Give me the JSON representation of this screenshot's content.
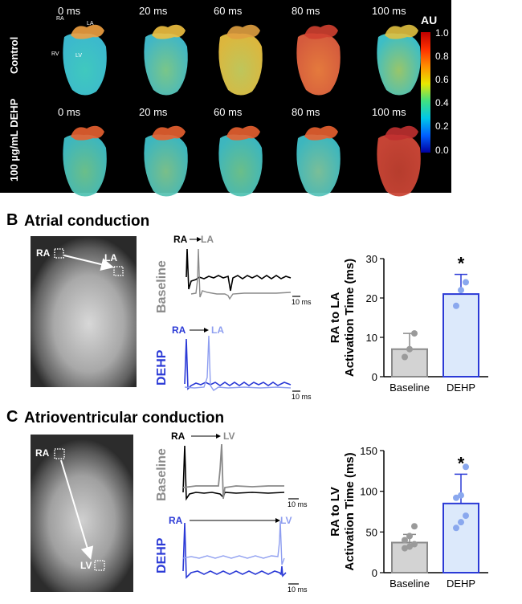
{
  "panelA": {
    "letter": "A",
    "row1_label": "Control",
    "row2_label": "100 µg/mL DEHP",
    "times_row1": [
      "0 ms",
      "20 ms",
      "60 ms",
      "80 ms",
      "100 ms"
    ],
    "times_row2": [
      "0 ms",
      "20 ms",
      "60 ms",
      "80 ms",
      "100 ms"
    ],
    "heart_labels": {
      "ra": "RA",
      "la": "LA",
      "rv": "RV",
      "lv": "LV"
    },
    "colorbar": {
      "unit": "AU",
      "ticks": [
        "1.0",
        "0.8",
        "0.6",
        "0.4",
        "0.2",
        "0.0"
      ]
    }
  },
  "panelB": {
    "letter": "B",
    "title": "Atrial conduction",
    "mri_labels": {
      "from": "RA",
      "to": "LA"
    },
    "baseline_label": "Baseline",
    "dehp_label": "DEHP",
    "trace_from": "RA",
    "trace_to": "LA",
    "scale": "10 ms"
  },
  "panelC": {
    "letter": "C",
    "title": "Atrioventricular conduction",
    "mri_labels": {
      "from": "RA",
      "to": "LV"
    },
    "baseline_label": "Baseline",
    "dehp_label": "DEHP",
    "trace_from": "RA",
    "trace_to": "LV",
    "scale": "10 ms"
  },
  "colors": {
    "baseline_bar": "#d3d3d3",
    "dehp_bar": "#dce9fb",
    "dehp_edge": "#2b3ad6",
    "dehp_point": "#8aa8ee",
    "baseline_point": "#9a9a9a",
    "trace_gray": "#8a8a8a",
    "trace_blue": "#2b3ad6",
    "trace_lightblue": "#8e9ef0"
  },
  "chart_data": [
    {
      "type": "bar",
      "title": "",
      "ylabel": "RA to LA Activation Time (ms)",
      "ylabel_line1": "RA to LA",
      "ylabel_line2": "Activation Time (ms)",
      "categories": [
        "Baseline",
        "DEHP"
      ],
      "values": [
        7,
        21
      ],
      "errors": [
        4,
        5
      ],
      "points": [
        [
          5,
          7,
          11
        ],
        [
          18,
          22,
          24
        ]
      ],
      "yticks": [
        "0",
        "10",
        "20",
        "30"
      ],
      "ylim": [
        0,
        30
      ],
      "significance": [
        "",
        "*"
      ]
    },
    {
      "type": "bar",
      "title": "",
      "ylabel": "RA to LV Activation Time (ms)",
      "ylabel_line1": "RA to LV",
      "ylabel_line2": "Activation Time (ms)",
      "categories": [
        "Baseline",
        "DEHP"
      ],
      "values": [
        37,
        85
      ],
      "errors": [
        10,
        36
      ],
      "points": [
        [
          30,
          32,
          35,
          40,
          45,
          57
        ],
        [
          55,
          62,
          70,
          92,
          95,
          130
        ]
      ],
      "yticks": [
        "0",
        "50",
        "100",
        "150"
      ],
      "ylim": [
        0,
        150
      ],
      "significance": [
        "",
        "*"
      ]
    }
  ]
}
